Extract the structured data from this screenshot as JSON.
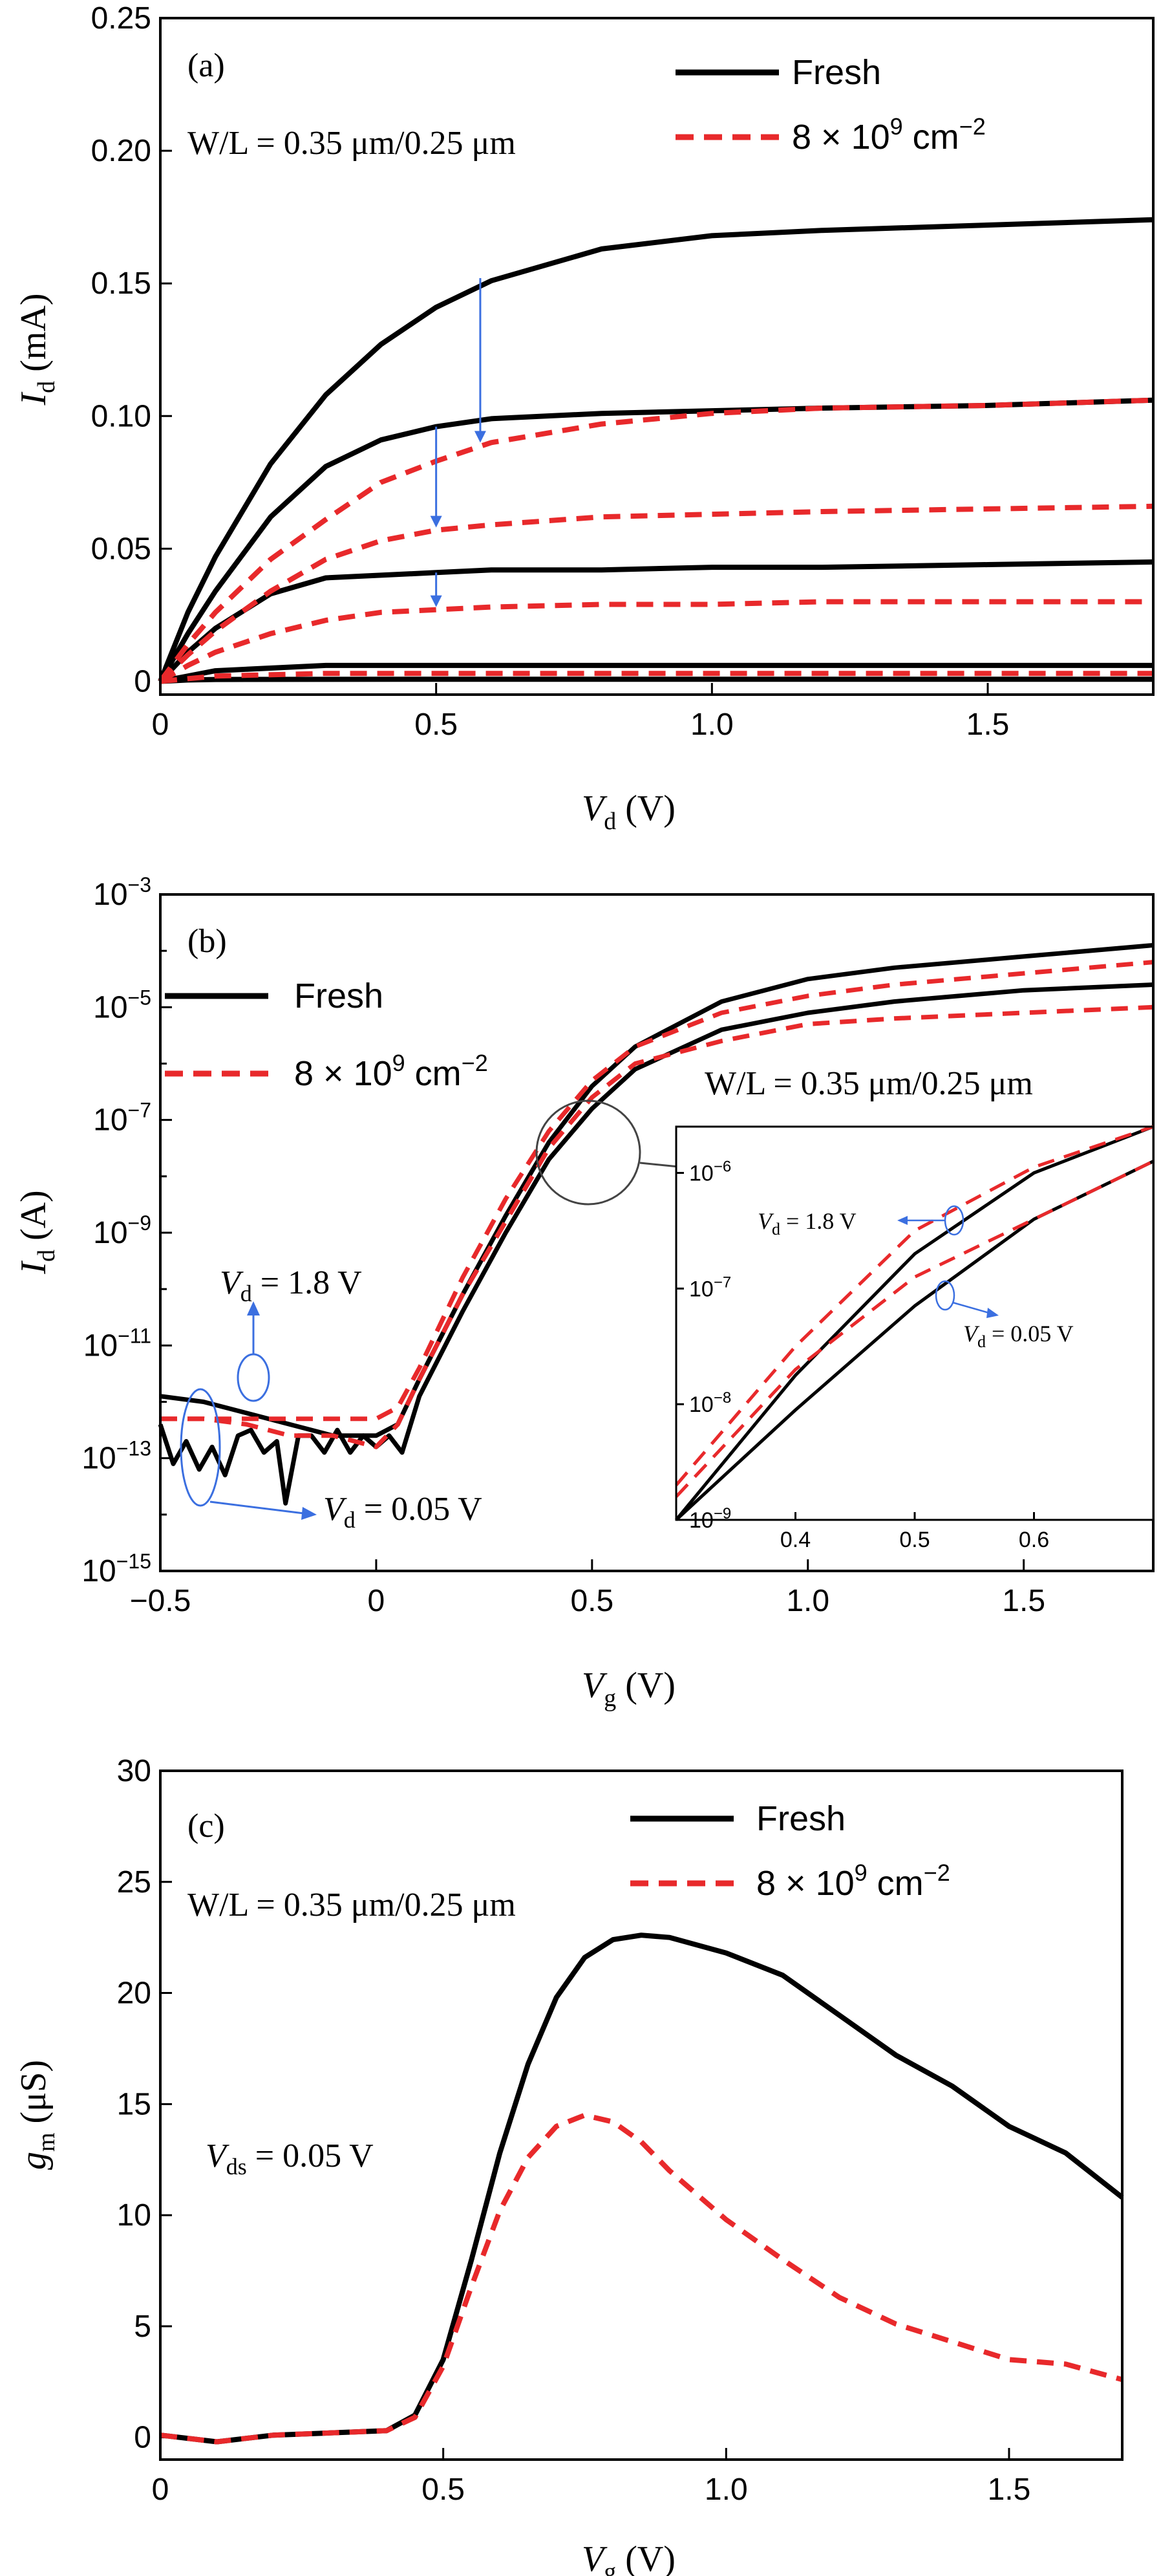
{
  "colors": {
    "fresh": "#000000",
    "irradiated": "#e8292b",
    "annotation": "#3b6fe0"
  },
  "chart_data": [
    {
      "panel": "(a)",
      "type": "line",
      "xlabel_main": "V",
      "xlabel_sub": "d",
      "xlabel_unit": " (V)",
      "ylabel_main": "I",
      "ylabel_sub": "d",
      "ylabel_unit": " (mA)",
      "xlim": [
        0,
        1.8
      ],
      "ylim": [
        -0.005,
        0.25
      ],
      "xticks": [
        0,
        0.5,
        1.0,
        1.5
      ],
      "xtick_labels": [
        "0",
        "0.5",
        "1.0",
        "1.5"
      ],
      "yticks": [
        0,
        0.05,
        0.1,
        0.15,
        0.2,
        0.25
      ],
      "ytick_labels": [
        "0",
        "0.05",
        "0.10",
        "0.15",
        "0.20",
        "0.25"
      ],
      "note": "W/L = 0.35 μm/0.25 μm",
      "legend": {
        "fresh": "Fresh",
        "irradiated_pre": "8 × 10",
        "irradiated_sup": "9",
        "irradiated_post": " cm",
        "irradiated_unit_sup": "−2"
      },
      "series": [
        {
          "name": "Fresh",
          "style": "solid",
          "curves": [
            {
              "x": [
                0,
                0.05,
                0.1,
                0.2,
                0.3,
                0.4,
                0.5,
                0.6,
                0.8,
                1.0,
                1.2,
                1.5,
                1.8
              ],
              "y": [
                0,
                0.026,
                0.047,
                0.082,
                0.108,
                0.127,
                0.141,
                0.151,
                0.163,
                0.168,
                0.17,
                0.172,
                0.174
              ]
            },
            {
              "x": [
                0,
                0.05,
                0.1,
                0.2,
                0.3,
                0.4,
                0.5,
                0.6,
                0.8,
                1.0,
                1.2,
                1.5,
                1.8
              ],
              "y": [
                0,
                0.018,
                0.034,
                0.062,
                0.081,
                0.091,
                0.096,
                0.099,
                0.101,
                0.102,
                0.103,
                0.104,
                0.106
              ]
            },
            {
              "x": [
                0,
                0.05,
                0.1,
                0.2,
                0.3,
                0.4,
                0.5,
                0.6,
                0.8,
                1.0,
                1.2,
                1.5,
                1.8
              ],
              "y": [
                0,
                0.011,
                0.02,
                0.033,
                0.039,
                0.04,
                0.041,
                0.042,
                0.042,
                0.043,
                0.043,
                0.044,
                0.045
              ]
            },
            {
              "x": [
                0,
                0.05,
                0.1,
                0.3,
                0.6,
                1.0,
                1.5,
                1.8
              ],
              "y": [
                0,
                0.002,
                0.004,
                0.006,
                0.006,
                0.006,
                0.006,
                0.006
              ]
            },
            {
              "x": [
                0,
                0.05,
                0.1,
                0.5,
                1.0,
                1.8
              ],
              "y": [
                0,
                0.0005,
                0.0007,
                0.0008,
                0.0008,
                0.0008
              ]
            }
          ]
        },
        {
          "name": "8 × 10^9 cm^-2",
          "style": "dashed",
          "curves": [
            {
              "x": [
                0,
                0.05,
                0.1,
                0.2,
                0.3,
                0.4,
                0.5,
                0.6,
                0.8,
                1.0,
                1.2,
                1.5,
                1.8
              ],
              "y": [
                0,
                0.014,
                0.026,
                0.046,
                0.061,
                0.075,
                0.083,
                0.09,
                0.097,
                0.101,
                0.103,
                0.104,
                0.106
              ]
            },
            {
              "x": [
                0,
                0.05,
                0.1,
                0.2,
                0.3,
                0.4,
                0.5,
                0.6,
                0.8,
                1.0,
                1.2,
                1.5,
                1.8
              ],
              "y": [
                0,
                0.01,
                0.019,
                0.034,
                0.046,
                0.053,
                0.057,
                0.059,
                0.062,
                0.063,
                0.064,
                0.065,
                0.066
              ]
            },
            {
              "x": [
                0,
                0.05,
                0.1,
                0.2,
                0.3,
                0.4,
                0.5,
                0.6,
                0.8,
                1.0,
                1.2,
                1.5,
                1.8
              ],
              "y": [
                0,
                0.006,
                0.011,
                0.018,
                0.023,
                0.026,
                0.027,
                0.028,
                0.029,
                0.029,
                0.03,
                0.03,
                0.03
              ]
            },
            {
              "x": [
                0,
                0.05,
                0.1,
                0.3,
                0.6,
                1.0,
                1.5,
                1.8
              ],
              "y": [
                0,
                0.001,
                0.002,
                0.003,
                0.003,
                0.003,
                0.003,
                0.003
              ]
            }
          ]
        }
      ],
      "arrows": [
        {
          "x": 0.58,
          "y_from": 0.152,
          "y_to": 0.09
        },
        {
          "x": 0.5,
          "y_from": 0.096,
          "y_to": 0.058
        },
        {
          "x": 0.5,
          "y_from": 0.041,
          "y_to": 0.028
        }
      ]
    },
    {
      "panel": "(b)",
      "type": "line",
      "yscale": "log",
      "xlabel_main": "V",
      "xlabel_sub": "g",
      "xlabel_unit": " (V)",
      "ylabel_main": "I",
      "ylabel_sub": "d",
      "ylabel_unit": " (A)",
      "xlim": [
        -0.5,
        1.8
      ],
      "ylim": [
        -15,
        -3
      ],
      "xticks": [
        -0.5,
        0,
        0.5,
        1.0,
        1.5
      ],
      "xtick_labels": [
        "−0.5",
        "0",
        "0.5",
        "1.0",
        "1.5"
      ],
      "ytick_exponents": [
        -3,
        -5,
        -7,
        -9,
        -11,
        -13,
        -15
      ],
      "ytick_base": "10",
      "ytick_sups": [
        "−3",
        "−5",
        "−7",
        "−9",
        "−11",
        "−13",
        "−15"
      ],
      "note": "W/L = 0.35 μm/0.25 μm",
      "legend": {
        "fresh": "Fresh",
        "irradiated_pre": "8 × 10",
        "irradiated_sup": "9",
        "irradiated_post": " cm",
        "irradiated_unit_sup": "−2"
      },
      "ann_high": {
        "main": "V",
        "sub": "d",
        "rest": " = 1.8 V"
      },
      "ann_low": {
        "main": "V",
        "sub": "d",
        "rest": " = 0.05 V"
      },
      "series": [
        {
          "name": "Fresh V_d=1.8 V",
          "style": "solid",
          "x": [
            -0.5,
            -0.4,
            -0.3,
            -0.2,
            -0.1,
            0,
            0.05,
            0.1,
            0.2,
            0.3,
            0.4,
            0.5,
            0.6,
            0.8,
            1.0,
            1.2,
            1.5,
            1.8
          ],
          "log_y": [
            -11.9,
            -12.0,
            -12.2,
            -12.4,
            -12.6,
            -12.6,
            -12.4,
            -11.6,
            -10.1,
            -8.7,
            -7.4,
            -6.4,
            -5.7,
            -4.9,
            -4.5,
            -4.3,
            -4.1,
            -3.9
          ]
        },
        {
          "name": "Fresh V_d=0.05 V",
          "style": "solid",
          "x": [
            -0.5,
            -0.47,
            -0.44,
            -0.41,
            -0.38,
            -0.35,
            -0.32,
            -0.29,
            -0.26,
            -0.23,
            -0.21,
            -0.18,
            -0.15,
            -0.12,
            -0.09,
            -0.06,
            -0.03,
            0,
            0.03,
            0.06,
            0.1,
            0.2,
            0.3,
            0.4,
            0.5,
            0.6,
            0.8,
            1.0,
            1.2,
            1.5,
            1.8
          ],
          "log_y": [
            -12.4,
            -13.1,
            -12.7,
            -13.2,
            -12.8,
            -13.3,
            -12.6,
            -12.5,
            -12.9,
            -12.7,
            -13.8,
            -12.6,
            -12.6,
            -12.9,
            -12.5,
            -12.9,
            -12.6,
            -12.8,
            -12.6,
            -12.9,
            -11.9,
            -10.4,
            -9.0,
            -7.7,
            -6.8,
            -6.1,
            -5.4,
            -5.1,
            -4.9,
            -4.7,
            -4.6
          ]
        },
        {
          "name": "8e9 V_d=1.8 V",
          "style": "dashed",
          "x": [
            -0.5,
            -0.4,
            -0.3,
            -0.2,
            -0.1,
            0,
            0.05,
            0.1,
            0.2,
            0.3,
            0.4,
            0.5,
            0.6,
            0.8,
            1.0,
            1.2,
            1.5,
            1.8
          ],
          "log_y": [
            -12.3,
            -12.3,
            -12.3,
            -12.3,
            -12.3,
            -12.3,
            -12.1,
            -11.4,
            -9.8,
            -8.4,
            -7.2,
            -6.3,
            -5.7,
            -5.1,
            -4.8,
            -4.6,
            -4.4,
            -4.2
          ]
        },
        {
          "name": "8e9 V_d=0.05 V",
          "style": "dashed",
          "x": [
            -0.5,
            -0.4,
            -0.3,
            -0.2,
            -0.1,
            0,
            0.05,
            0.1,
            0.2,
            0.3,
            0.4,
            0.5,
            0.6,
            0.8,
            1.0,
            1.2,
            1.5,
            1.8
          ],
          "log_y": [
            -12.3,
            -12.3,
            -12.4,
            -12.6,
            -12.6,
            -12.8,
            -12.4,
            -11.6,
            -10.1,
            -8.8,
            -7.5,
            -6.6,
            -6.0,
            -5.6,
            -5.3,
            -5.2,
            -5.1,
            -5.0
          ]
        }
      ],
      "inset": {
        "xlim": [
          0.3,
          0.7
        ],
        "ylim": [
          -9,
          -5.6
        ],
        "xticks": [
          0.4,
          0.5,
          0.6
        ],
        "xtick_labels": [
          "0.4",
          "0.5",
          "0.6"
        ],
        "ytick_exponents": [
          -9,
          -8,
          -7,
          -6
        ],
        "ytick_sups": [
          "−9",
          "−8",
          "−7",
          "−6"
        ],
        "ann_high": {
          "main": "V",
          "sub": "d",
          "rest": " = 1.8 V"
        },
        "ann_low": {
          "main": "V",
          "sub": "d",
          "rest": " = 0.05 V"
        },
        "series": [
          {
            "name": "Fresh V_d=1.8 V",
            "style": "solid",
            "x": [
              0.3,
              0.4,
              0.5,
              0.6,
              0.7
            ],
            "log_y": [
              -9.0,
              -7.75,
              -6.7,
              -6.0,
              -5.6
            ]
          },
          {
            "name": "Fresh V_d=0.05 V",
            "style": "solid",
            "x": [
              0.3,
              0.4,
              0.5,
              0.6,
              0.7
            ],
            "log_y": [
              -9.0,
              -8.05,
              -7.15,
              -6.4,
              -5.9
            ]
          },
          {
            "name": "8e9 V_d=1.8 V",
            "style": "dashed",
            "x": [
              0.3,
              0.4,
              0.5,
              0.6,
              0.7
            ],
            "log_y": [
              -8.7,
              -7.5,
              -6.5,
              -5.95,
              -5.6
            ]
          },
          {
            "name": "8e9 V_d=0.05 V",
            "style": "dashed",
            "x": [
              0.3,
              0.4,
              0.5,
              0.6,
              0.7
            ],
            "log_y": [
              -8.8,
              -7.7,
              -6.9,
              -6.4,
              -5.9
            ]
          }
        ]
      }
    },
    {
      "panel": "(c)",
      "type": "line",
      "xlabel_main": "V",
      "xlabel_sub": "g",
      "xlabel_unit": " (V)",
      "ylabel_main": "g",
      "ylabel_sub": "m",
      "ylabel_unit": " (μS)",
      "xlim": [
        0,
        1.7
      ],
      "ylim": [
        -1,
        30
      ],
      "xticks": [
        0,
        0.5,
        1.0,
        1.5
      ],
      "xtick_labels": [
        "0",
        "0.5",
        "1.0",
        "1.5"
      ],
      "yticks": [
        0,
        5,
        10,
        15,
        20,
        25,
        30
      ],
      "ytick_labels": [
        "0",
        "5",
        "10",
        "15",
        "20",
        "25",
        "30"
      ],
      "note": "W/L = 0.35 μm/0.25 μm",
      "vds": {
        "main": "V",
        "sub": "ds",
        "rest": " = 0.05 V"
      },
      "legend": {
        "fresh": "Fresh",
        "irradiated_pre": "8 × 10",
        "irradiated_sup": "9",
        "irradiated_post": " cm",
        "irradiated_unit_sup": "−2"
      },
      "series": [
        {
          "name": "Fresh",
          "style": "solid",
          "x": [
            0,
            0.1,
            0.2,
            0.3,
            0.4,
            0.45,
            0.5,
            0.55,
            0.6,
            0.65,
            0.7,
            0.75,
            0.8,
            0.85,
            0.9,
            1.0,
            1.1,
            1.2,
            1.3,
            1.4,
            1.5,
            1.6,
            1.7
          ],
          "y": [
            0.1,
            -0.2,
            0.1,
            0.2,
            0.3,
            1.0,
            3.5,
            8.0,
            12.8,
            16.8,
            19.8,
            21.6,
            22.4,
            22.6,
            22.5,
            21.8,
            20.8,
            19.0,
            17.2,
            15.8,
            14.0,
            12.8,
            10.8
          ]
        },
        {
          "name": "8 × 10^9 cm^-2",
          "style": "dashed",
          "x": [
            0,
            0.1,
            0.2,
            0.3,
            0.4,
            0.45,
            0.5,
            0.55,
            0.6,
            0.65,
            0.7,
            0.75,
            0.8,
            0.85,
            0.9,
            1.0,
            1.1,
            1.2,
            1.3,
            1.4,
            1.5,
            1.6,
            1.7
          ],
          "y": [
            0.1,
            -0.2,
            0.1,
            0.2,
            0.3,
            0.9,
            3.2,
            6.8,
            10.2,
            12.6,
            14.0,
            14.5,
            14.2,
            13.3,
            12.0,
            9.8,
            8.0,
            6.3,
            5.1,
            4.3,
            3.5,
            3.3,
            2.6
          ]
        }
      ]
    }
  ]
}
